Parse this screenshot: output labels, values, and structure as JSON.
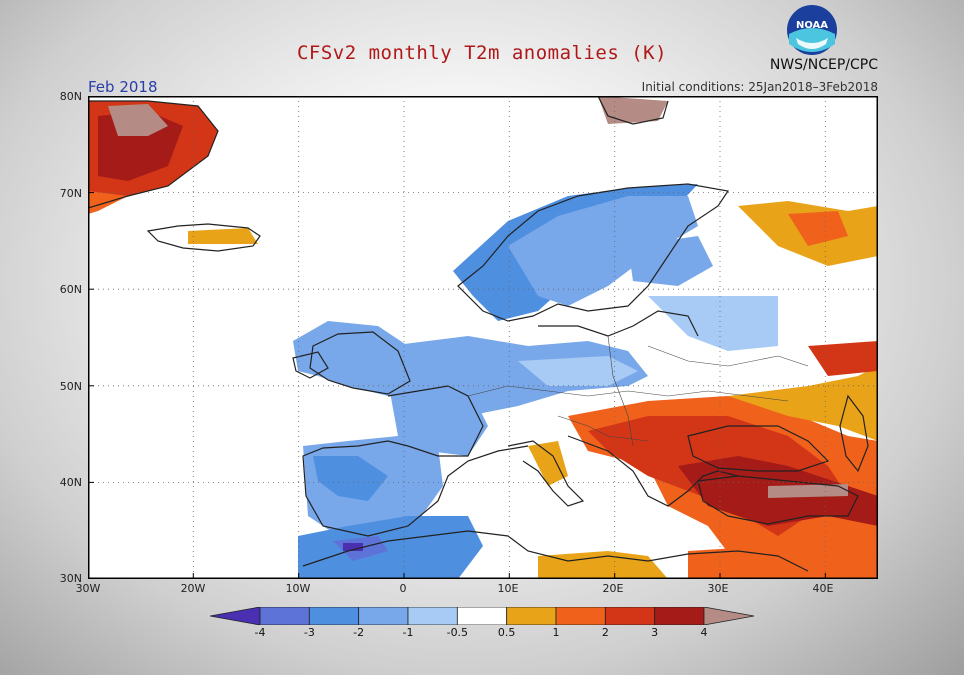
{
  "title": "CFSv2 monthly T2m anomalies (K)",
  "month": "Feb 2018",
  "initial_conditions": "Initial conditions: 25Jan2018–3Feb2018",
  "agency": "NWS/NCEP/CPC",
  "logo_text": "NOAA",
  "lat_labels": [
    "80N",
    "70N",
    "60N",
    "50N",
    "40N",
    "30N"
  ],
  "lon_labels": [
    "30W",
    "20W",
    "10W",
    "0",
    "10E",
    "20E",
    "30E",
    "40E"
  ],
  "colorbar": {
    "labels": [
      "-4",
      "-3",
      "-2",
      "-1",
      "-0.5",
      "0.5",
      "1",
      "2",
      "3",
      "4"
    ],
    "colors": [
      "#4a2fb0",
      "#5e73d8",
      "#4f8fe0",
      "#78a8ea",
      "#a8cbf5",
      "#ffffff",
      "#e9a319",
      "#f0621c",
      "#d23617",
      "#a51b18",
      "#b48c85"
    ]
  },
  "map_colors": {
    "cold1": "#a8cbf5",
    "cold2": "#78a8ea",
    "cold3": "#4f8fe0",
    "cold4": "#5e73d8",
    "cold5": "#4a2fb0",
    "warm1": "#e9a319",
    "warm2": "#f0621c",
    "warm3": "#d23617",
    "warm4": "#a51b18",
    "warm5": "#b48c85"
  }
}
